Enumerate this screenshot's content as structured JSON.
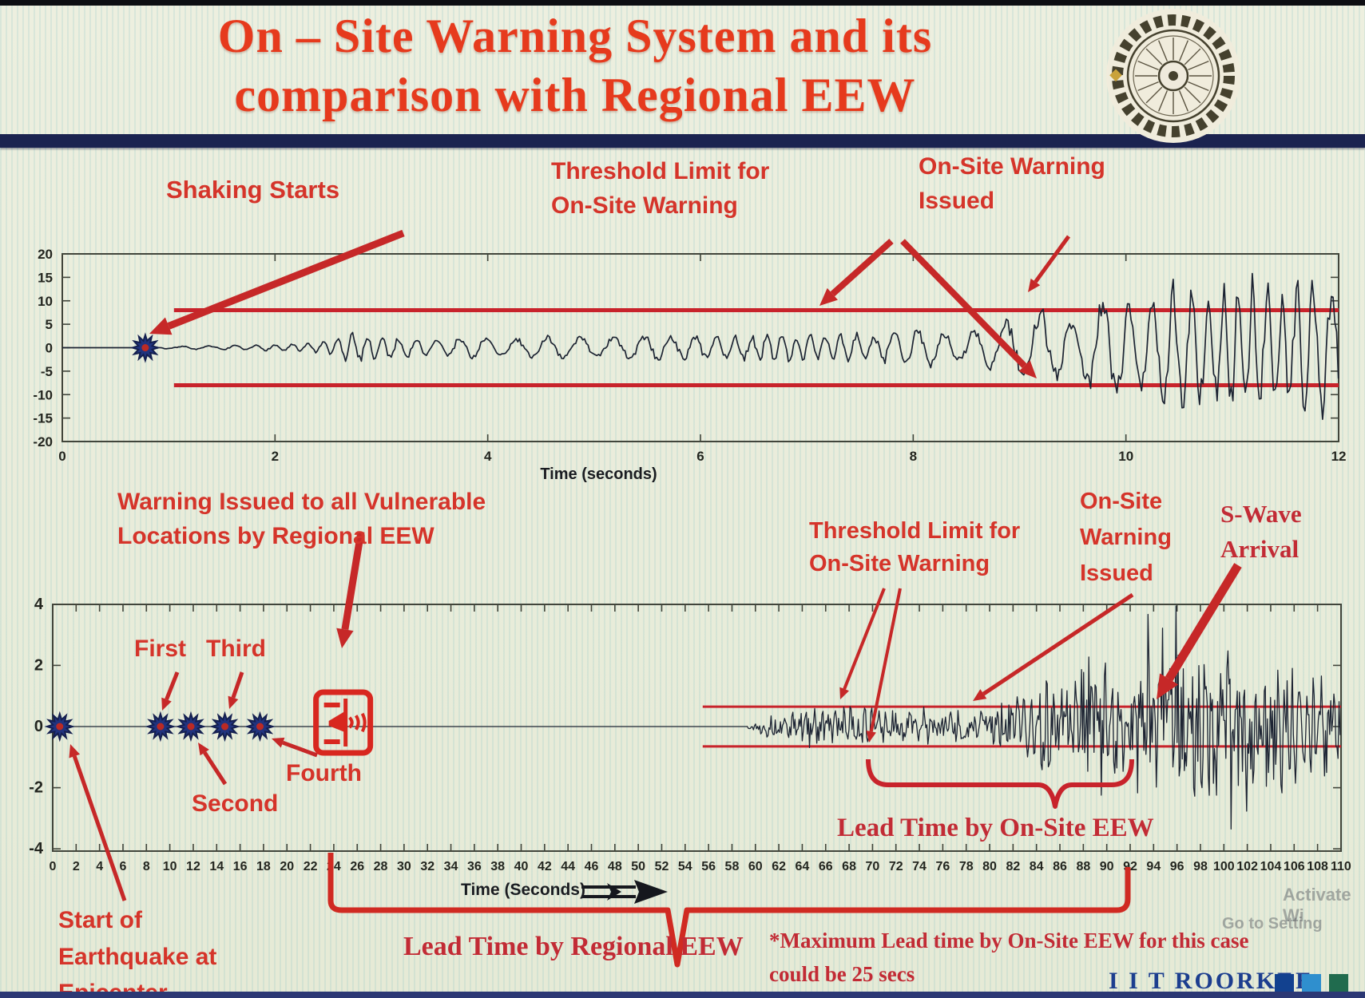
{
  "slide": {
    "title_line1": "On – Site Warning System and its",
    "title_line2": "comparison with Regional EEW",
    "logo": "iit-roorkee-emblem",
    "footer_brand": "I I T ROORKEE",
    "watermark_line1": "Activate Wi",
    "watermark_line2": "Go to Setting"
  },
  "annotations_top": {
    "shaking_starts": "Shaking Starts",
    "threshold_line1": "Threshold Limit for",
    "threshold_line2": "On-Site Warning",
    "warning_line1": "On-Site Warning",
    "warning_line2": "Issued"
  },
  "annotations_bottom": {
    "regional_warning_line1": "Warning Issued to all Vulnerable",
    "regional_warning_line2": "Locations by Regional EEW",
    "threshold_line1": "Threshold Limit for",
    "threshold_line2": "On-Site Warning",
    "onsite_warning_line1": "On-Site",
    "onsite_warning_line2": "Warning",
    "onsite_warning_line3": "Issued",
    "swave_line1": "S-Wave",
    "swave_line2": "Arrival",
    "station_first": "First",
    "station_second": "Second",
    "station_third": "Third",
    "station_fourth": "Fourth",
    "epicenter_line1": "Start of",
    "epicenter_line2": "Earthquake at",
    "epicenter_line3": "Epicenter",
    "lead_time_onsite": "Lead Time by On-Site EEW",
    "lead_time_regional": "Lead Time by Regional EEW",
    "max_lead_note_line1": "*Maximum Lead time by On-Site EEW for this case",
    "max_lead_note_line2": "could be 25 secs"
  },
  "chart_data": [
    {
      "id": "onsite-accelerogram",
      "type": "line",
      "xlabel": "Time (seconds)",
      "xlim": [
        0,
        12
      ],
      "ylim": [
        -20,
        20
      ],
      "x_ticks": [
        0,
        2,
        4,
        6,
        8,
        10,
        12
      ],
      "y_ticks": [
        20,
        15,
        10,
        5,
        0,
        -5,
        -10,
        -15,
        -20
      ],
      "grid": false,
      "threshold_upper": 8,
      "threshold_lower": -8,
      "threshold_start_x": 1.05,
      "shaking_start_x": 0.78,
      "onsite_warning_issued_x": 9.15,
      "line_color": "#1d2433",
      "threshold_color": "#c8232b",
      "seed": 7,
      "amplitude_envelope": [
        [
          0.78,
          0.12
        ],
        [
          1.1,
          0.35
        ],
        [
          1.6,
          0.5
        ],
        [
          2.1,
          0.75
        ],
        [
          2.45,
          1.4
        ],
        [
          2.7,
          3.4
        ],
        [
          3.0,
          2.6
        ],
        [
          3.4,
          1.8
        ],
        [
          3.8,
          2.6
        ],
        [
          4.2,
          2.2
        ],
        [
          4.7,
          2.9
        ],
        [
          5.2,
          2.5
        ],
        [
          5.7,
          3.1
        ],
        [
          6.2,
          2.7
        ],
        [
          6.7,
          3.3
        ],
        [
          7.2,
          3.0
        ],
        [
          7.7,
          3.6
        ],
        [
          8.1,
          4.3
        ],
        [
          8.45,
          3.5
        ],
        [
          8.8,
          5.5
        ],
        [
          9.05,
          7.5
        ],
        [
          9.2,
          9.5
        ],
        [
          9.45,
          6.5
        ],
        [
          9.7,
          10.5
        ],
        [
          9.95,
          13.5
        ],
        [
          10.2,
          9.5
        ],
        [
          10.5,
          16.0
        ],
        [
          10.8,
          11.5
        ],
        [
          11.1,
          17.0
        ],
        [
          11.45,
          12.5
        ],
        [
          11.75,
          17.5
        ],
        [
          12.0,
          14.0
        ]
      ]
    },
    {
      "id": "regional-vs-onsite-timeline",
      "type": "line",
      "xlabel": "Time (Seconds)",
      "xlim": [
        0,
        110
      ],
      "ylim": [
        -4,
        4
      ],
      "x_tick_range": {
        "start": 0,
        "end": 110,
        "step": 2
      },
      "y_ticks": [
        4,
        2,
        0,
        -2,
        -4
      ],
      "grid": false,
      "threshold_upper": 0.65,
      "threshold_lower": -0.65,
      "threshold_start_x": 55.5,
      "epicenter_x": 0.6,
      "station_detections_x": [
        9.2,
        11.8,
        14.7,
        17.7
      ],
      "regional_warning_issued_x": 24.8,
      "p_wave_onset_x": 59.3,
      "s_wave_arrival_x": 93.5,
      "lead_time_regional_span_x": [
        24,
        92.5
      ],
      "lead_time_onsite_span_x": [
        70,
        92.5
      ],
      "max_lead_time_secs": 25,
      "line_color": "#1d2433",
      "threshold_color": "#c8232b",
      "seed": 13,
      "amplitude_envelope": [
        [
          59.3,
          0.05
        ],
        [
          60.0,
          0.2
        ],
        [
          61.5,
          0.33
        ],
        [
          63.0,
          0.42
        ],
        [
          65.0,
          0.5
        ],
        [
          68.0,
          0.55
        ],
        [
          71.0,
          0.5
        ],
        [
          74.0,
          0.58
        ],
        [
          77.0,
          0.52
        ],
        [
          80.0,
          0.62
        ],
        [
          82.0,
          0.85
        ],
        [
          83.5,
          1.15
        ],
        [
          85.0,
          1.55
        ],
        [
          86.5,
          1.35
        ],
        [
          88.0,
          1.75
        ],
        [
          89.5,
          2.55
        ],
        [
          90.5,
          1.65
        ],
        [
          91.5,
          1.25
        ],
        [
          92.5,
          1.85
        ],
        [
          93.5,
          2.6
        ],
        [
          95.0,
          2.95
        ],
        [
          96.5,
          2.55
        ],
        [
          98.0,
          2.75
        ],
        [
          100.0,
          2.35
        ],
        [
          102.0,
          2.15
        ],
        [
          104.0,
          1.85
        ],
        [
          106.0,
          1.65
        ],
        [
          108.0,
          1.55
        ],
        [
          110.0,
          1.45
        ]
      ]
    }
  ]
}
